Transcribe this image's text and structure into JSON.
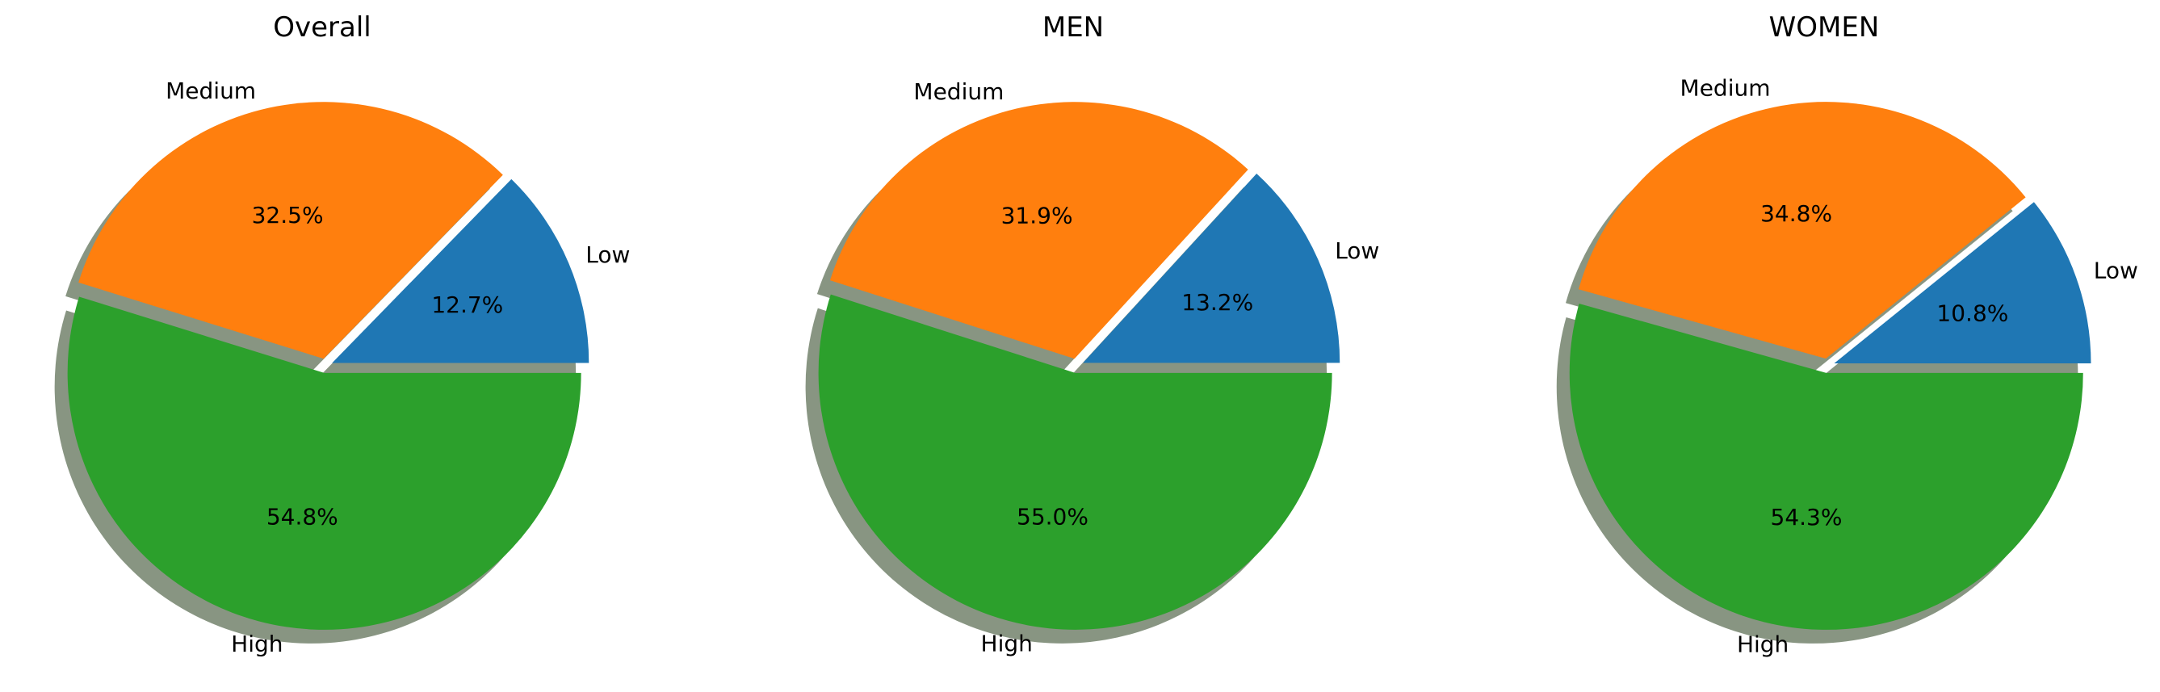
{
  "chart_data": [
    {
      "type": "pie",
      "title": "Overall",
      "labels": [
        "Low",
        "Medium",
        "High"
      ],
      "values": [
        12.7,
        32.5,
        54.8
      ],
      "value_labels": [
        "12.7%",
        "32.5%",
        "54.8%"
      ],
      "colors": [
        "#1f77b4",
        "#ff7f0e",
        "#2ca02c"
      ],
      "start_angle": 0,
      "explode": true,
      "shadow": true
    },
    {
      "type": "pie",
      "title": "MEN",
      "labels": [
        "Low",
        "Medium",
        "High"
      ],
      "values": [
        13.2,
        31.9,
        55.0
      ],
      "value_labels": [
        "13.2%",
        "31.9%",
        "55.0%"
      ],
      "colors": [
        "#1f77b4",
        "#ff7f0e",
        "#2ca02c"
      ],
      "start_angle": 0,
      "explode": true,
      "shadow": true
    },
    {
      "type": "pie",
      "title": "WOMEN",
      "labels": [
        "Low",
        "Medium",
        "High"
      ],
      "values": [
        10.8,
        34.8,
        54.3
      ],
      "value_labels": [
        "10.8%",
        "34.8%",
        "54.3%"
      ],
      "colors": [
        "#1f77b4",
        "#ff7f0e",
        "#2ca02c"
      ],
      "start_angle": 0,
      "explode": true,
      "shadow": true
    }
  ]
}
